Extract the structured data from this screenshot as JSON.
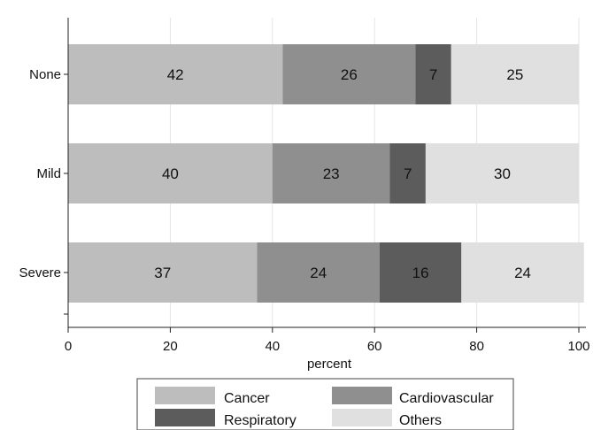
{
  "chart_data": {
    "type": "bar",
    "orientation": "horizontal",
    "stacked": true,
    "categories": [
      "None",
      "Mild",
      "Severe"
    ],
    "xlabel": "percent",
    "xlim": [
      0,
      100
    ],
    "xticks": [
      "0",
      "20",
      "40",
      "60",
      "80",
      "100"
    ],
    "grid": true,
    "legend_position": "bottom",
    "series": [
      {
        "name": "Cancer",
        "values": [
          42,
          40,
          37
        ],
        "labels": [
          "42",
          "40",
          "37"
        ],
        "color": "#bdbdbd"
      },
      {
        "name": "Cardiovascular",
        "values": [
          26,
          23,
          24
        ],
        "labels": [
          "26",
          "23",
          "24"
        ],
        "color": "#8f8f8f"
      },
      {
        "name": "Respiratory",
        "values": [
          7,
          7,
          16
        ],
        "labels": [
          "7",
          "7",
          "16"
        ],
        "color": "#5c5c5c"
      },
      {
        "name": "Others",
        "values": [
          25,
          30,
          24
        ],
        "labels": [
          "25",
          "30",
          "24"
        ],
        "color": "#e0e0e0"
      }
    ]
  }
}
